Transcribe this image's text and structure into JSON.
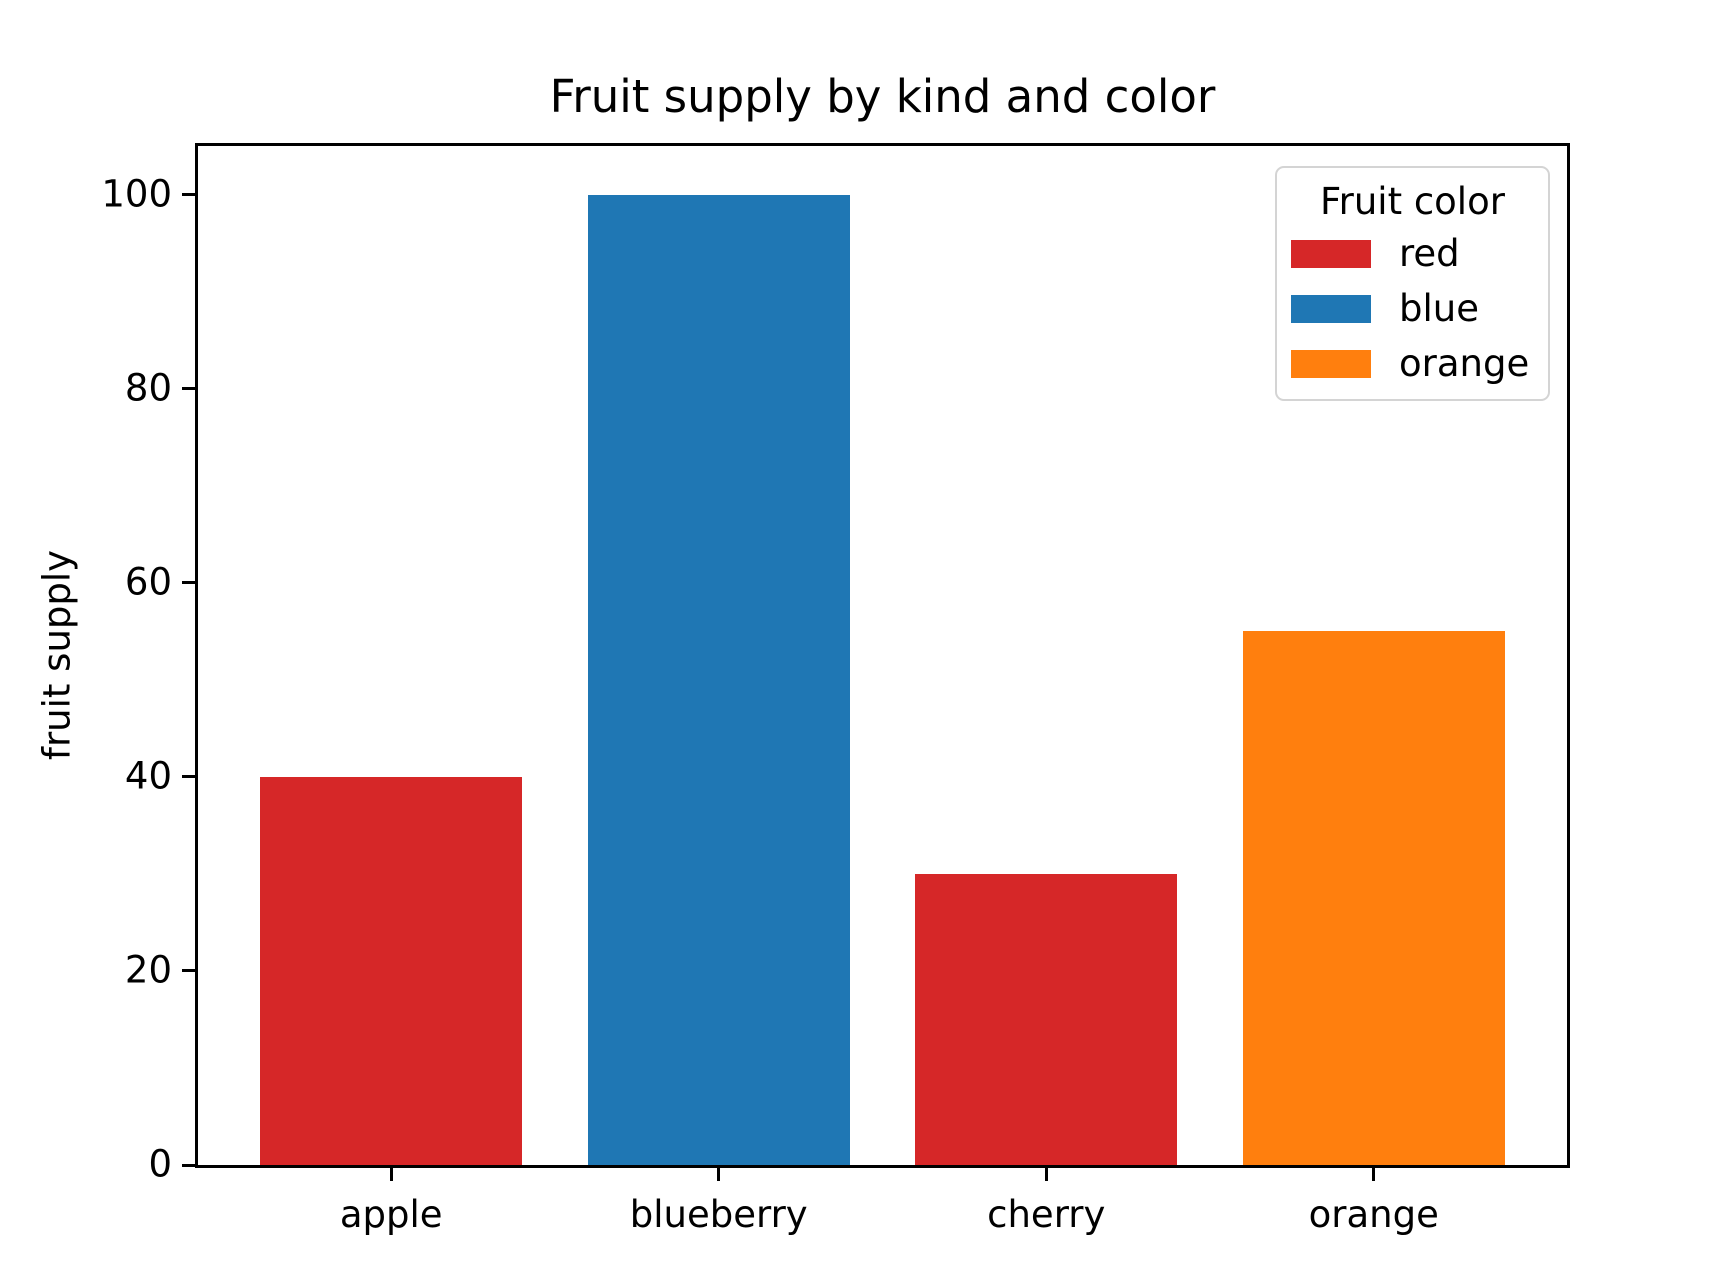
{
  "chart_data": {
    "type": "bar",
    "title": "Fruit supply by kind and color",
    "xlabel": "",
    "ylabel": "fruit supply",
    "categories": [
      "apple",
      "blueberry",
      "cherry",
      "orange"
    ],
    "values": [
      40,
      100,
      30,
      55
    ],
    "bar_colors": [
      "#d62728",
      "#1f77b4",
      "#d62728",
      "#ff7f0e"
    ],
    "yticks": [
      0,
      20,
      40,
      60,
      80,
      100
    ],
    "ylim": [
      0,
      105
    ],
    "grid": false,
    "legend": {
      "title": "Fruit color",
      "position": "upper right",
      "entries": [
        {
          "label": "red",
          "color": "#d62728"
        },
        {
          "label": "blue",
          "color": "#1f77b4"
        },
        {
          "label": "orange",
          "color": "#ff7f0e"
        }
      ]
    }
  }
}
